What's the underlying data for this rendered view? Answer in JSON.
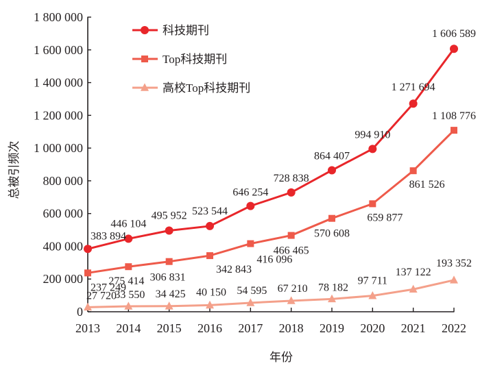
{
  "chart_data": {
    "type": "line",
    "title": "",
    "xlabel": "年份",
    "ylabel": "总被引频次",
    "x": [
      "2013",
      "2014",
      "2015",
      "2016",
      "2017",
      "2018",
      "2019",
      "2020",
      "2021",
      "2022"
    ],
    "ylim": [
      0,
      1800000
    ],
    "y_ticks": [
      0,
      200000,
      400000,
      600000,
      800000,
      1000000,
      1200000,
      1400000,
      1600000,
      1800000
    ],
    "y_tick_labels": [
      "0",
      "200 000",
      "400 000",
      "600 000",
      "800 000",
      "1 000 000",
      "1 200 000",
      "1 400 000",
      "1 600 000",
      "1 800 000"
    ],
    "grid": false,
    "legend_position": "top-left",
    "series": [
      {
        "name": "科技期刊",
        "marker": "circle",
        "color": "#e8262a",
        "values": [
          383894,
          446104,
          495952,
          523544,
          646254,
          728838,
          864407,
          994910,
          1271694,
          1606589
        ],
        "labels": [
          "383 894",
          "446 104",
          "495 952",
          "523 544",
          "646 254",
          "728 838",
          "864 407",
          "994 910",
          "1 271 694",
          "1 606 589"
        ]
      },
      {
        "name": "Top科技期刊",
        "marker": "square",
        "color": "#ee5a4a",
        "values": [
          237249,
          275414,
          306831,
          342843,
          416096,
          466465,
          570608,
          659877,
          861526,
          1108776
        ],
        "labels": [
          "237 249",
          "275 414",
          "306 831",
          "342 843",
          "416 096",
          "466 465",
          "570 608",
          "659 877",
          "861 526",
          "1 108 776"
        ]
      },
      {
        "name": "高校Top科技期刊",
        "marker": "triangle",
        "color": "#f4a08a",
        "values": [
          27720,
          33550,
          34425,
          40150,
          54595,
          67210,
          78182,
          97711,
          137122,
          193352
        ],
        "labels": [
          "27 720",
          "33 550",
          "34 425",
          "40 150",
          "54 595",
          "67 210",
          "78 182",
          "97 711",
          "137 122",
          "193 352"
        ]
      }
    ]
  }
}
